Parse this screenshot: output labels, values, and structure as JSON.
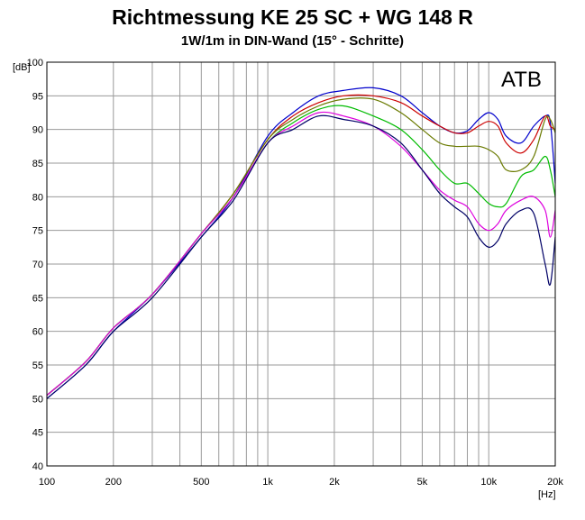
{
  "title": "Richtmessung KE 25 SC + WG 148 R",
  "subtitle": "1W/1m in DIN-Wand (15° - Schritte)",
  "brand": "ATB",
  "chart_data": {
    "type": "line",
    "xscale": "log",
    "xlim": [
      100,
      20000
    ],
    "ylim": [
      40,
      100
    ],
    "grid": true,
    "y_unit": "[dB]",
    "x_unit": "[Hz]",
    "x_ticks": [
      {
        "v": 100,
        "label": "100"
      },
      {
        "v": 200,
        "label": "200"
      },
      {
        "v": 500,
        "label": "500"
      },
      {
        "v": 1000,
        "label": "1k"
      },
      {
        "v": 2000,
        "label": "2k"
      },
      {
        "v": 5000,
        "label": "5k"
      },
      {
        "v": 10000,
        "label": "10k"
      },
      {
        "v": 20000,
        "label": "20k"
      }
    ],
    "y_ticks": [
      40,
      45,
      50,
      55,
      60,
      65,
      70,
      75,
      80,
      85,
      90,
      95,
      100
    ],
    "series": [
      {
        "color": "#0000cc",
        "points": [
          [
            100,
            50
          ],
          [
            150,
            55
          ],
          [
            200,
            60
          ],
          [
            300,
            65.5
          ],
          [
            500,
            74
          ],
          [
            700,
            80
          ],
          [
            1000,
            89
          ],
          [
            1300,
            92.5
          ],
          [
            1700,
            95
          ],
          [
            2200,
            95.8
          ],
          [
            3000,
            96.2
          ],
          [
            4000,
            95
          ],
          [
            5000,
            92.5
          ],
          [
            6000,
            90.5
          ],
          [
            7000,
            89.5
          ],
          [
            8000,
            89.8
          ],
          [
            9000,
            91.5
          ],
          [
            10000,
            92.5
          ],
          [
            11000,
            91.5
          ],
          [
            12000,
            89
          ],
          [
            14000,
            88
          ],
          [
            16000,
            90.5
          ],
          [
            18000,
            92
          ],
          [
            19000,
            91
          ],
          [
            20000,
            82
          ]
        ]
      },
      {
        "color": "#cc0000",
        "points": [
          [
            100,
            50.5
          ],
          [
            150,
            55.5
          ],
          [
            200,
            60.5
          ],
          [
            300,
            65.5
          ],
          [
            500,
            74.5
          ],
          [
            700,
            80.5
          ],
          [
            1000,
            88.5
          ],
          [
            1300,
            92
          ],
          [
            1700,
            94
          ],
          [
            2200,
            95
          ],
          [
            3000,
            95
          ],
          [
            4000,
            94
          ],
          [
            5000,
            92
          ],
          [
            6000,
            90.5
          ],
          [
            7000,
            89.5
          ],
          [
            8000,
            89.5
          ],
          [
            9000,
            90.5
          ],
          [
            10000,
            91.2
          ],
          [
            11000,
            90.5
          ],
          [
            12000,
            88
          ],
          [
            14000,
            86.5
          ],
          [
            16000,
            88.5
          ],
          [
            18000,
            92
          ],
          [
            19000,
            90.5
          ],
          [
            20000,
            90
          ]
        ]
      },
      {
        "color": "#6a7a00",
        "points": [
          [
            100,
            50.5
          ],
          [
            150,
            55.5
          ],
          [
            200,
            60.5
          ],
          [
            300,
            65.5
          ],
          [
            500,
            74.5
          ],
          [
            700,
            80.5
          ],
          [
            1000,
            88.5
          ],
          [
            1300,
            91.5
          ],
          [
            1700,
            93.5
          ],
          [
            2200,
            94.5
          ],
          [
            3000,
            94.5
          ],
          [
            4000,
            92.5
          ],
          [
            5000,
            90
          ],
          [
            6000,
            88
          ],
          [
            7000,
            87.5
          ],
          [
            8000,
            87.5
          ],
          [
            9000,
            87.5
          ],
          [
            10000,
            87
          ],
          [
            11000,
            86
          ],
          [
            12000,
            84
          ],
          [
            14000,
            84
          ],
          [
            16000,
            86
          ],
          [
            18000,
            91.5
          ],
          [
            19000,
            91.5
          ],
          [
            20000,
            89.5
          ]
        ]
      },
      {
        "color": "#00bb00",
        "points": [
          [
            100,
            50.5
          ],
          [
            150,
            55.5
          ],
          [
            200,
            60.5
          ],
          [
            300,
            65.5
          ],
          [
            500,
            74.5
          ],
          [
            700,
            80
          ],
          [
            1000,
            88
          ],
          [
            1300,
            91
          ],
          [
            1700,
            93
          ],
          [
            2200,
            93.5
          ],
          [
            3000,
            92
          ],
          [
            4000,
            90
          ],
          [
            5000,
            87
          ],
          [
            6000,
            84
          ],
          [
            7000,
            82
          ],
          [
            8000,
            82
          ],
          [
            9000,
            80.5
          ],
          [
            10000,
            79
          ],
          [
            11000,
            78.5
          ],
          [
            12000,
            79
          ],
          [
            14000,
            83
          ],
          [
            16000,
            84
          ],
          [
            18000,
            86
          ],
          [
            19000,
            84
          ],
          [
            20000,
            80
          ]
        ]
      },
      {
        "color": "#dd00dd",
        "points": [
          [
            100,
            50.5
          ],
          [
            150,
            55.5
          ],
          [
            200,
            60.5
          ],
          [
            300,
            65.5
          ],
          [
            500,
            74.5
          ],
          [
            700,
            80
          ],
          [
            1000,
            88
          ],
          [
            1300,
            90.5
          ],
          [
            1700,
            92.5
          ],
          [
            2200,
            92
          ],
          [
            3000,
            90.5
          ],
          [
            4000,
            87.5
          ],
          [
            5000,
            84
          ],
          [
            6000,
            81
          ],
          [
            7000,
            79.5
          ],
          [
            8000,
            78.5
          ],
          [
            9000,
            76
          ],
          [
            10000,
            75
          ],
          [
            11000,
            76
          ],
          [
            12000,
            78
          ],
          [
            14000,
            79.5
          ],
          [
            16000,
            80
          ],
          [
            18000,
            78
          ],
          [
            19000,
            74
          ],
          [
            20000,
            78
          ]
        ]
      },
      {
        "color": "#000066",
        "points": [
          [
            100,
            50
          ],
          [
            150,
            55
          ],
          [
            200,
            60
          ],
          [
            300,
            65
          ],
          [
            500,
            74
          ],
          [
            700,
            79.5
          ],
          [
            1000,
            88
          ],
          [
            1300,
            90
          ],
          [
            1700,
            92
          ],
          [
            2200,
            91.5
          ],
          [
            3000,
            90.5
          ],
          [
            4000,
            88
          ],
          [
            5000,
            84
          ],
          [
            6000,
            80.5
          ],
          [
            7000,
            78.5
          ],
          [
            8000,
            77
          ],
          [
            9000,
            74
          ],
          [
            10000,
            72.5
          ],
          [
            11000,
            73.5
          ],
          [
            12000,
            76
          ],
          [
            14000,
            78
          ],
          [
            16000,
            77.5
          ],
          [
            18000,
            70
          ],
          [
            19000,
            67
          ],
          [
            20000,
            74
          ]
        ]
      }
    ]
  }
}
